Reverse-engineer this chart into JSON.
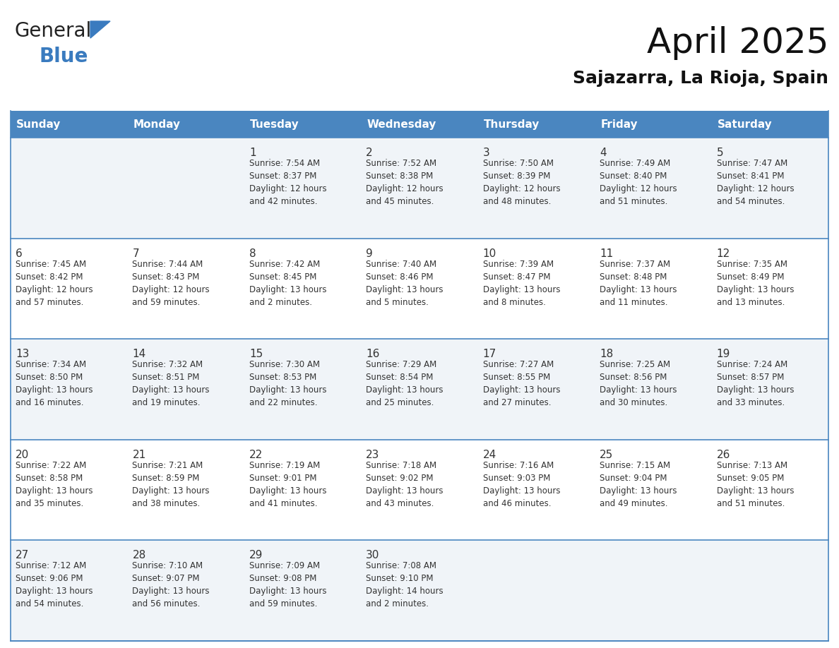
{
  "title": "April 2025",
  "subtitle": "Sajazarra, La Rioja, Spain",
  "header_bg_color": "#4a86c0",
  "header_text_color": "#ffffff",
  "row_bg_odd": "#f0f4f8",
  "row_bg_even": "#ffffff",
  "border_color": "#4a86c0",
  "text_color": "#333333",
  "days_of_week": [
    "Sunday",
    "Monday",
    "Tuesday",
    "Wednesday",
    "Thursday",
    "Friday",
    "Saturday"
  ],
  "weeks": [
    [
      {
        "day": "",
        "info": ""
      },
      {
        "day": "",
        "info": ""
      },
      {
        "day": "1",
        "info": "Sunrise: 7:54 AM\nSunset: 8:37 PM\nDaylight: 12 hours\nand 42 minutes."
      },
      {
        "day": "2",
        "info": "Sunrise: 7:52 AM\nSunset: 8:38 PM\nDaylight: 12 hours\nand 45 minutes."
      },
      {
        "day": "3",
        "info": "Sunrise: 7:50 AM\nSunset: 8:39 PM\nDaylight: 12 hours\nand 48 minutes."
      },
      {
        "day": "4",
        "info": "Sunrise: 7:49 AM\nSunset: 8:40 PM\nDaylight: 12 hours\nand 51 minutes."
      },
      {
        "day": "5",
        "info": "Sunrise: 7:47 AM\nSunset: 8:41 PM\nDaylight: 12 hours\nand 54 minutes."
      }
    ],
    [
      {
        "day": "6",
        "info": "Sunrise: 7:45 AM\nSunset: 8:42 PM\nDaylight: 12 hours\nand 57 minutes."
      },
      {
        "day": "7",
        "info": "Sunrise: 7:44 AM\nSunset: 8:43 PM\nDaylight: 12 hours\nand 59 minutes."
      },
      {
        "day": "8",
        "info": "Sunrise: 7:42 AM\nSunset: 8:45 PM\nDaylight: 13 hours\nand 2 minutes."
      },
      {
        "day": "9",
        "info": "Sunrise: 7:40 AM\nSunset: 8:46 PM\nDaylight: 13 hours\nand 5 minutes."
      },
      {
        "day": "10",
        "info": "Sunrise: 7:39 AM\nSunset: 8:47 PM\nDaylight: 13 hours\nand 8 minutes."
      },
      {
        "day": "11",
        "info": "Sunrise: 7:37 AM\nSunset: 8:48 PM\nDaylight: 13 hours\nand 11 minutes."
      },
      {
        "day": "12",
        "info": "Sunrise: 7:35 AM\nSunset: 8:49 PM\nDaylight: 13 hours\nand 13 minutes."
      }
    ],
    [
      {
        "day": "13",
        "info": "Sunrise: 7:34 AM\nSunset: 8:50 PM\nDaylight: 13 hours\nand 16 minutes."
      },
      {
        "day": "14",
        "info": "Sunrise: 7:32 AM\nSunset: 8:51 PM\nDaylight: 13 hours\nand 19 minutes."
      },
      {
        "day": "15",
        "info": "Sunrise: 7:30 AM\nSunset: 8:53 PM\nDaylight: 13 hours\nand 22 minutes."
      },
      {
        "day": "16",
        "info": "Sunrise: 7:29 AM\nSunset: 8:54 PM\nDaylight: 13 hours\nand 25 minutes."
      },
      {
        "day": "17",
        "info": "Sunrise: 7:27 AM\nSunset: 8:55 PM\nDaylight: 13 hours\nand 27 minutes."
      },
      {
        "day": "18",
        "info": "Sunrise: 7:25 AM\nSunset: 8:56 PM\nDaylight: 13 hours\nand 30 minutes."
      },
      {
        "day": "19",
        "info": "Sunrise: 7:24 AM\nSunset: 8:57 PM\nDaylight: 13 hours\nand 33 minutes."
      }
    ],
    [
      {
        "day": "20",
        "info": "Sunrise: 7:22 AM\nSunset: 8:58 PM\nDaylight: 13 hours\nand 35 minutes."
      },
      {
        "day": "21",
        "info": "Sunrise: 7:21 AM\nSunset: 8:59 PM\nDaylight: 13 hours\nand 38 minutes."
      },
      {
        "day": "22",
        "info": "Sunrise: 7:19 AM\nSunset: 9:01 PM\nDaylight: 13 hours\nand 41 minutes."
      },
      {
        "day": "23",
        "info": "Sunrise: 7:18 AM\nSunset: 9:02 PM\nDaylight: 13 hours\nand 43 minutes."
      },
      {
        "day": "24",
        "info": "Sunrise: 7:16 AM\nSunset: 9:03 PM\nDaylight: 13 hours\nand 46 minutes."
      },
      {
        "day": "25",
        "info": "Sunrise: 7:15 AM\nSunset: 9:04 PM\nDaylight: 13 hours\nand 49 minutes."
      },
      {
        "day": "26",
        "info": "Sunrise: 7:13 AM\nSunset: 9:05 PM\nDaylight: 13 hours\nand 51 minutes."
      }
    ],
    [
      {
        "day": "27",
        "info": "Sunrise: 7:12 AM\nSunset: 9:06 PM\nDaylight: 13 hours\nand 54 minutes."
      },
      {
        "day": "28",
        "info": "Sunrise: 7:10 AM\nSunset: 9:07 PM\nDaylight: 13 hours\nand 56 minutes."
      },
      {
        "day": "29",
        "info": "Sunrise: 7:09 AM\nSunset: 9:08 PM\nDaylight: 13 hours\nand 59 minutes."
      },
      {
        "day": "30",
        "info": "Sunrise: 7:08 AM\nSunset: 9:10 PM\nDaylight: 14 hours\nand 2 minutes."
      },
      {
        "day": "",
        "info": ""
      },
      {
        "day": "",
        "info": ""
      },
      {
        "day": "",
        "info": ""
      }
    ]
  ],
  "logo_general_color": "#222222",
  "logo_blue_color": "#3a7bbf",
  "logo_triangle_color": "#3a7bbf",
  "title_fontsize": 36,
  "subtitle_fontsize": 18,
  "header_fontsize": 11,
  "day_num_fontsize": 11,
  "info_fontsize": 8.5
}
